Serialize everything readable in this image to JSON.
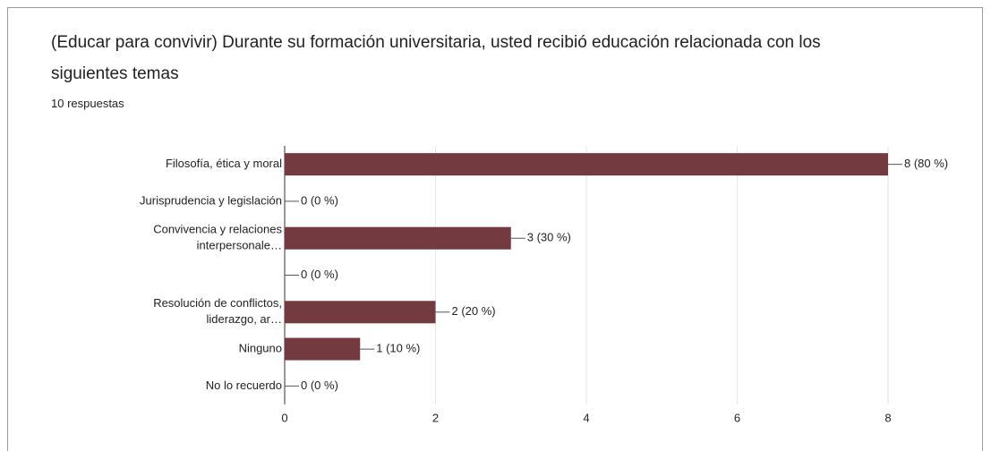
{
  "chart_data": {
    "type": "bar",
    "orientation": "horizontal",
    "title": "(Educar para convivir) Durante su formación universitaria, usted recibió educación relacionada con los siguientes temas",
    "subtitle": "10 respuestas",
    "categories": [
      [
        "Filosofía, ética y moral"
      ],
      [
        "Jurisprudencia y legislación"
      ],
      [
        "Convivencia y relaciones",
        "interpersonale…"
      ],
      null,
      [
        "Resolución de conflictos,",
        "liderazgo, ar…"
      ],
      [
        "Ninguno"
      ],
      [
        "No lo recuerdo"
      ]
    ],
    "values": [
      8,
      0,
      3,
      0,
      2,
      1,
      0
    ],
    "value_labels": [
      "8 (80 %)",
      "0 (0 %)",
      "3 (30 %)",
      "0 (0 %)",
      "2 (20 %)",
      "1 (10 %)",
      "0 (0 %)"
    ],
    "color": "#733a3f",
    "xlim": [
      0,
      8
    ],
    "xticks": [
      0,
      2,
      4,
      6,
      8
    ],
    "grid": true
  }
}
